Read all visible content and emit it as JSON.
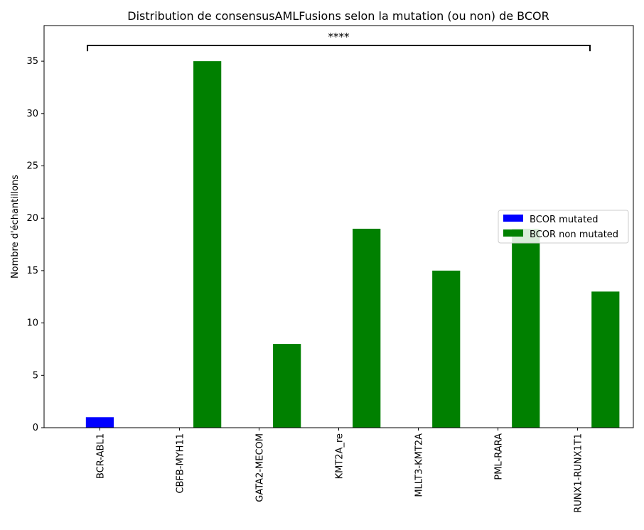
{
  "chart_data": {
    "type": "bar",
    "title": "Distribution de consensusAMLFusions selon la mutation (ou non) de BCOR",
    "xlabel": "",
    "ylabel": "Nombre d'échantillons",
    "ylim": [
      0,
      38.4
    ],
    "yticks": [
      0,
      5,
      10,
      15,
      20,
      25,
      30,
      35
    ],
    "categories": [
      "BCR-ABL1",
      "CBFB-MYH11",
      "GATA2-MECOM",
      "KMT2A_re",
      "MLLT3-KMT2A",
      "PML-RARA",
      "RUNX1-RUNX1T1"
    ],
    "series": [
      {
        "name": "BCOR mutated",
        "color": "#0000ff",
        "values": [
          1,
          0,
          0,
          0,
          0,
          0,
          0
        ]
      },
      {
        "name": "BCOR non mutated",
        "color": "#008000",
        "values": [
          0,
          35,
          8,
          19,
          15,
          19,
          13
        ]
      }
    ],
    "legend_position": "center-right",
    "grid": false,
    "annotation": {
      "text": "****",
      "from_category": "BCR-ABL1",
      "to_category": "RUNX1-RUNX1T1",
      "y": 36.5
    }
  }
}
